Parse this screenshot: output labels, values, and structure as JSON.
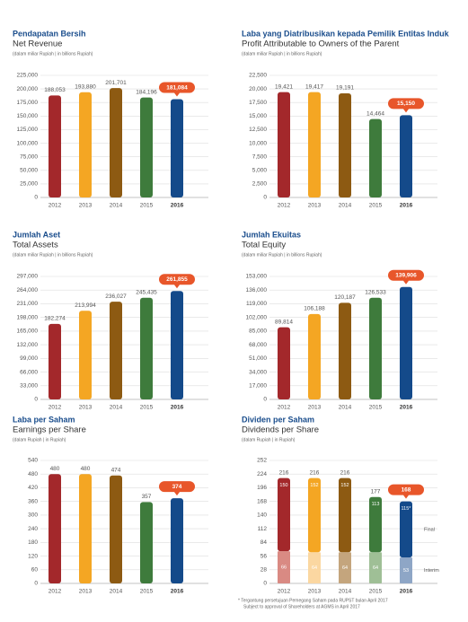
{
  "chart_data": [
    {
      "type": "bar",
      "title": "Pendapatan Bersih",
      "subtitle": "Net Revenue",
      "unit_note": "(dalam miliar Rupiah | in billions Rupiah)",
      "categories": [
        "2012",
        "2013",
        "2014",
        "2015",
        "2016"
      ],
      "values": [
        188053,
        193880,
        201701,
        184196,
        181084
      ],
      "value_labels": [
        "188,053",
        "193,880",
        "201,701",
        "184,196",
        "181,084"
      ],
      "colors": [
        "#a3282b",
        "#f4a623",
        "#8d5a12",
        "#3e7b3c",
        "#144a8a"
      ],
      "ylim": [
        0,
        225000
      ],
      "yticks": [
        0,
        {
          "value": 25000,
          "label": "25,000"
        },
        {
          "value": 50000,
          "label": "50,000"
        },
        {
          "value": 75000,
          "label": "75,000"
        },
        {
          "value": 100000,
          "label": "100,000"
        },
        {
          "value": 125000,
          "label": "125,000"
        },
        {
          "value": 150000,
          "label": "150,000"
        },
        {
          "value": 175000,
          "label": "175,000"
        },
        {
          "value": 200000,
          "label": "200,000"
        },
        {
          "value": 225000,
          "label": "225,000"
        }
      ]
    },
    {
      "type": "bar",
      "title": "Laba yang Diatribusikan kepada Pemilik Entitas Induk",
      "subtitle": "Profit Attributable to Owners of the Parent",
      "unit_note": "(dalam miliar Rupiah | in billions Rupiah)",
      "categories": [
        "2012",
        "2013",
        "2014",
        "2015",
        "2016"
      ],
      "values": [
        19421,
        19417,
        19191,
        14464,
        15150
      ],
      "value_labels": [
        "19,421",
        "19,417",
        "19,191",
        "14,464",
        "15,150"
      ],
      "colors": [
        "#a3282b",
        "#f4a623",
        "#8d5a12",
        "#3e7b3c",
        "#144a8a"
      ],
      "ylim": [
        0,
        22500
      ],
      "yticks": [
        0,
        {
          "value": 2500,
          "label": "2,500"
        },
        {
          "value": 5000,
          "label": "5,000"
        },
        {
          "value": 7500,
          "label": "7,500"
        },
        {
          "value": 10000,
          "label": "10,000"
        },
        {
          "value": 12500,
          "label": "12,500"
        },
        {
          "value": 15000,
          "label": "15,000"
        },
        {
          "value": 17500,
          "label": "17,500"
        },
        {
          "value": 20000,
          "label": "20,000"
        },
        {
          "value": 22500,
          "label": "22,500"
        }
      ]
    },
    {
      "type": "bar",
      "title": "Jumlah Aset",
      "subtitle": "Total Assets",
      "unit_note": "(dalam miliar Rupiah | in billions Rupiah)",
      "categories": [
        "2012",
        "2013",
        "2014",
        "2015",
        "2016"
      ],
      "values": [
        182274,
        213994,
        236027,
        245435,
        261855
      ],
      "value_labels": [
        "182,274",
        "213,994",
        "236,027",
        "245,435",
        "261,855"
      ],
      "colors": [
        "#a3282b",
        "#f4a623",
        "#8d5a12",
        "#3e7b3c",
        "#144a8a"
      ],
      "ylim": [
        0,
        297000
      ],
      "yticks": [
        0,
        {
          "value": 33000,
          "label": "33,000"
        },
        {
          "value": 66000,
          "label": "66,000"
        },
        {
          "value": 99000,
          "label": "99,000"
        },
        {
          "value": 132000,
          "label": "132,000"
        },
        {
          "value": 165000,
          "label": "165,000"
        },
        {
          "value": 198000,
          "label": "198,000"
        },
        {
          "value": 231000,
          "label": "231,000"
        },
        {
          "value": 264000,
          "label": "264,000"
        },
        {
          "value": 297000,
          "label": "297,000"
        }
      ]
    },
    {
      "type": "bar",
      "title": "Jumlah Ekuitas",
      "subtitle": "Total Equity",
      "unit_note": "(dalam miliar Rupiah | in billions Rupiah)",
      "categories": [
        "2012",
        "2013",
        "2014",
        "2015",
        "2016"
      ],
      "values": [
        89814,
        106188,
        120187,
        126533,
        139906
      ],
      "value_labels": [
        "89,814",
        "106,188",
        "120,187",
        "126,533",
        "139,906"
      ],
      "colors": [
        "#a3282b",
        "#f4a623",
        "#8d5a12",
        "#3e7b3c",
        "#144a8a"
      ],
      "ylim": [
        0,
        153000
      ],
      "yticks": [
        0,
        {
          "value": 17000,
          "label": "17,000"
        },
        {
          "value": 34000,
          "label": "34,000"
        },
        {
          "value": 51000,
          "label": "51,000"
        },
        {
          "value": 68000,
          "label": "68,000"
        },
        {
          "value": 85000,
          "label": "85,000"
        },
        {
          "value": 102000,
          "label": "102,000"
        },
        {
          "value": 119000,
          "label": "119,000"
        },
        {
          "value": 136000,
          "label": "136,000"
        },
        {
          "value": 153000,
          "label": "153,000"
        }
      ]
    },
    {
      "type": "bar",
      "title": "Laba per Saham",
      "subtitle": "Earnings per Share",
      "unit_note": "(dalam Rupiah | in Rupiah)",
      "categories": [
        "2012",
        "2013",
        "2014",
        "2015",
        "2016"
      ],
      "values": [
        480,
        480,
        474,
        357,
        374
      ],
      "colors": [
        "#a3282b",
        "#f4a623",
        "#8d5a12",
        "#3e7b3c",
        "#144a8a"
      ],
      "ylim": [
        0,
        540
      ],
      "yticks": [
        0,
        60,
        120,
        180,
        240,
        300,
        360,
        420,
        480,
        540
      ]
    },
    {
      "type": "stacked_bar",
      "title": "Dividen per Saham",
      "subtitle": "Dividends per Share",
      "unit_note": "(dalam Rupiah | in Rupiah)",
      "categories": [
        "2012",
        "2013",
        "2014",
        "2015",
        "2016"
      ],
      "series": [
        {
          "name": "Interim",
          "values": [
            66,
            64,
            64,
            64,
            53
          ],
          "colors": [
            "#d98a83",
            "#fbd7a1",
            "#c4a57d",
            "#9fbf96",
            "#8ea6c6"
          ]
        },
        {
          "name": "Final",
          "values": [
            150,
            152,
            152,
            113,
            115
          ],
          "value_labels": [
            "150",
            "152",
            "152",
            "113",
            "115*"
          ],
          "colors": [
            "#a3282b",
            "#f4a623",
            "#8d5a12",
            "#3e7b3c",
            "#144a8a"
          ]
        }
      ],
      "total_labels": [
        "216",
        "216",
        "216",
        "177",
        "168"
      ],
      "ylim": [
        0,
        252
      ],
      "yticks": [
        0,
        28,
        56,
        84,
        112,
        140,
        168,
        196,
        224,
        252
      ],
      "footnote": [
        "* Tergantung persetujuan Pemegang Saham pada RUPST bulan April 2017",
        "Subject to approval of Shareholders at AGMS in April 2017"
      ]
    }
  ]
}
